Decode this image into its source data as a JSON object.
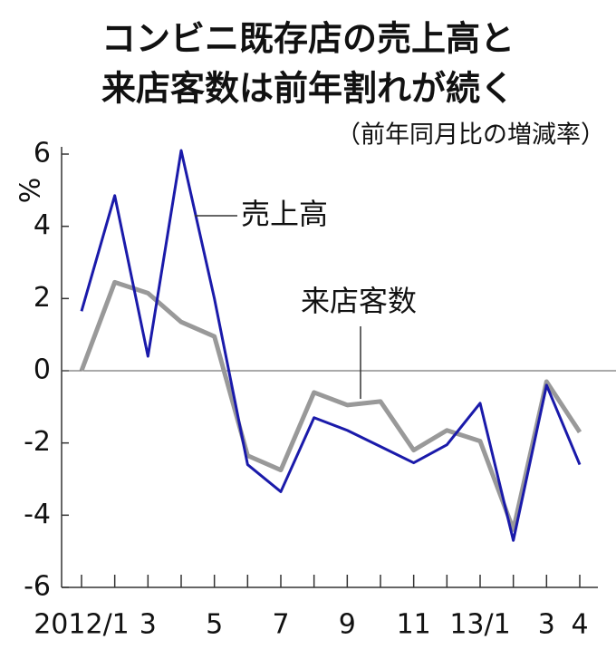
{
  "chart_data": {
    "type": "line",
    "title": [
      "コンビニ既存店の売上高と",
      "来店客数は前年割れが続く"
    ],
    "subtitle": "（前年同月比の増減率）",
    "y_label": "%",
    "categories": [
      "2012/1",
      null,
      "3",
      null,
      "5",
      null,
      "7",
      null,
      "9",
      null,
      "11",
      null,
      "13/1",
      null,
      "3",
      "4"
    ],
    "series": [
      {
        "name": "売上高",
        "color": "#1a1aaa",
        "values": [
          1.65,
          4.85,
          0.4,
          6.1,
          2.0,
          -2.6,
          -3.35,
          -1.3,
          -1.65,
          -2.1,
          -2.55,
          -2.05,
          -0.9,
          -4.7,
          -0.4,
          -2.6
        ]
      },
      {
        "name": "来店客数",
        "color": "#999999",
        "values": [
          0,
          2.45,
          2.15,
          1.35,
          0.95,
          -2.35,
          -2.75,
          -0.6,
          -0.95,
          -0.85,
          -2.2,
          -1.65,
          -1.95,
          -4.4,
          -0.3,
          -1.7
        ]
      }
    ],
    "ylim": [
      -6,
      6
    ],
    "yticks": [
      6,
      4,
      2,
      0,
      -2,
      -4,
      -6
    ]
  }
}
